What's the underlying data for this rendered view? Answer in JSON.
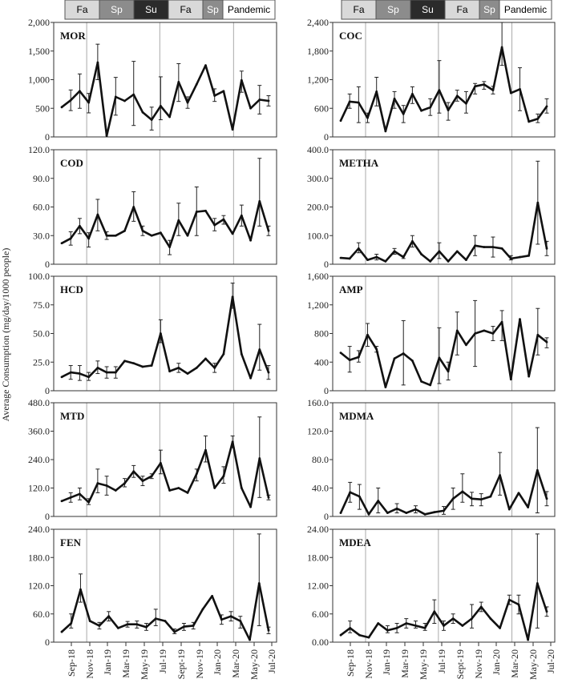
{
  "y_axis_label": "Average Consumption (mg/day/1000 people)",
  "x_tick_labels": [
    "Sep-18",
    "Nov-18",
    "Jan-19",
    "Mar-19",
    "May-19",
    "Jul-19",
    "Sept-19",
    "Nov-19",
    "Jan-20",
    "Mar-20",
    "May-20",
    "Jul-20"
  ],
  "season_bar": {
    "labels": [
      "Fa",
      "Sp",
      "Su",
      "Fa",
      "Sp",
      "Pandemic"
    ],
    "colors": [
      "#d9d9d9",
      "#8c8c8c",
      "#2b2b2b",
      "#d9d9d9",
      "#8c8c8c",
      "#ffffff"
    ],
    "text_colors": [
      "#000000",
      "#ffffff",
      "#ffffff",
      "#000000",
      "#ffffff",
      "#000000"
    ]
  },
  "chart_data": [
    {
      "type": "line",
      "title": "MOR",
      "ylim": [
        0,
        2000
      ],
      "yticks": [
        "0",
        "500",
        "1,000",
        "1,500",
        "2,000"
      ],
      "series": [
        {
          "values": [
            520,
            640,
            800,
            600,
            1300,
            20,
            700,
            630,
            740,
            430,
            300,
            540,
            350,
            960,
            600,
            920,
            1250,
            720,
            800,
            130,
            990,
            500,
            650,
            630
          ],
          "error_lo": [
            null,
            460,
            500,
            420,
            1000,
            null,
            380,
            null,
            200,
            null,
            120,
            300,
            null,
            620,
            500,
            null,
            null,
            620,
            null,
            null,
            780,
            null,
            400,
            540
          ],
          "error_hi": [
            null,
            820,
            1100,
            760,
            1620,
            null,
            1040,
            1150,
            1320,
            null,
            520,
            1050,
            null,
            1280,
            700,
            null,
            null,
            840,
            null,
            null,
            1150,
            null,
            900,
            720
          ]
        }
      ]
    },
    {
      "type": "line",
      "title": "COC",
      "ylim": [
        0,
        2400
      ],
      "yticks": [
        "0",
        "600",
        "1,200",
        "1,800",
        "2,400"
      ],
      "series": [
        {
          "values": [
            340,
            740,
            720,
            400,
            950,
            120,
            800,
            480,
            900,
            550,
            620,
            980,
            560,
            860,
            700,
            1060,
            1100,
            980,
            1880,
            920,
            1000,
            320,
            380,
            640
          ],
          "error_lo": [
            null,
            600,
            300,
            300,
            650,
            null,
            600,
            300,
            700,
            null,
            450,
            500,
            350,
            750,
            500,
            900,
            1000,
            900,
            1500,
            null,
            550,
            null,
            300,
            500
          ],
          "error_hi": [
            null,
            900,
            1050,
            500,
            1250,
            null,
            950,
            660,
            1050,
            null,
            800,
            1600,
            720,
            980,
            950,
            1120,
            1160,
            1060,
            2400,
            null,
            1450,
            null,
            480,
            800
          ]
        }
      ]
    },
    {
      "type": "line",
      "title": "COD",
      "ylim": [
        0,
        120
      ],
      "yticks": [
        "0",
        "30.0",
        "60.0",
        "90.0",
        "120.0"
      ],
      "series": [
        {
          "values": [
            22,
            27,
            40,
            27,
            52,
            30,
            30,
            35,
            60,
            35,
            30,
            33,
            18,
            46,
            30,
            55,
            56,
            41,
            47,
            32,
            51,
            25,
            66,
            35
          ],
          "error_lo": [
            null,
            20,
            32,
            18,
            35,
            26,
            null,
            null,
            45,
            30,
            null,
            null,
            10,
            30,
            null,
            30,
            null,
            35,
            42,
            null,
            40,
            null,
            40,
            30
          ],
          "error_hi": [
            null,
            34,
            48,
            33,
            68,
            34,
            null,
            53,
            76,
            40,
            null,
            51,
            25,
            64,
            null,
            81,
            null,
            48,
            51,
            null,
            62,
            null,
            111,
            40
          ]
        }
      ]
    },
    {
      "type": "line",
      "title": "METHA",
      "ylim": [
        0,
        400
      ],
      "yticks": [
        "0",
        "100.0",
        "200.0",
        "300.0",
        "400.0"
      ],
      "series": [
        {
          "values": [
            22,
            20,
            55,
            15,
            25,
            10,
            45,
            25,
            80,
            35,
            10,
            45,
            10,
            45,
            15,
            65,
            60,
            60,
            55,
            20,
            25,
            30,
            215,
            55
          ],
          "error_lo": [
            null,
            null,
            40,
            null,
            15,
            null,
            35,
            20,
            60,
            null,
            null,
            20,
            null,
            null,
            null,
            30,
            null,
            25,
            null,
            15,
            null,
            null,
            70,
            30
          ],
          "error_hi": [
            null,
            null,
            75,
            null,
            35,
            null,
            55,
            30,
            100,
            null,
            null,
            75,
            null,
            null,
            null,
            100,
            null,
            95,
            null,
            30,
            null,
            null,
            360,
            80
          ]
        }
      ]
    },
    {
      "type": "line",
      "title": "HCD",
      "ylim": [
        0,
        100
      ],
      "yticks": [
        "0",
        "25.0",
        "50.0",
        "75.0",
        "100.0"
      ],
      "series": [
        {
          "values": [
            12,
            16,
            15,
            12,
            20,
            16,
            16,
            26,
            24,
            21,
            22,
            50,
            17,
            20,
            15,
            20,
            28,
            20,
            32,
            82,
            32,
            11,
            36,
            16
          ],
          "error_lo": [
            null,
            10,
            9,
            9,
            15,
            11,
            11,
            null,
            null,
            null,
            null,
            42,
            null,
            16,
            null,
            null,
            null,
            16,
            null,
            72,
            null,
            null,
            18,
            10
          ],
          "error_hi": [
            null,
            22,
            22,
            16,
            26,
            21,
            21,
            null,
            null,
            null,
            null,
            62,
            null,
            24,
            null,
            null,
            null,
            24,
            null,
            94,
            null,
            null,
            58,
            22
          ]
        }
      ]
    },
    {
      "type": "line",
      "title": "AMP",
      "ylim": [
        0,
        1600
      ],
      "yticks": [
        "0",
        "400",
        "800",
        "1,200",
        "1,600"
      ],
      "series": [
        {
          "values": [
            530,
            430,
            470,
            780,
            580,
            50,
            450,
            520,
            420,
            130,
            80,
            460,
            270,
            840,
            640,
            800,
            840,
            800,
            960,
            160,
            1000,
            200,
            780,
            680
          ],
          "error_lo": [
            null,
            260,
            400,
            620,
            540,
            null,
            null,
            80,
            null,
            null,
            null,
            100,
            150,
            500,
            null,
            340,
            null,
            700,
            700,
            null,
            null,
            null,
            500,
            600
          ],
          "error_hi": [
            null,
            620,
            560,
            940,
            620,
            null,
            null,
            980,
            null,
            null,
            null,
            880,
            400,
            1100,
            null,
            1260,
            null,
            900,
            1120,
            null,
            null,
            null,
            1150,
            740
          ]
        }
      ]
    },
    {
      "type": "line",
      "title": "MTD",
      "ylim": [
        0,
        480
      ],
      "yticks": [
        "0",
        "120.0",
        "240.0",
        "360.0",
        "480.0"
      ],
      "series": [
        {
          "values": [
            65,
            80,
            95,
            60,
            140,
            130,
            110,
            140,
            190,
            150,
            170,
            225,
            110,
            120,
            100,
            180,
            280,
            120,
            170,
            315,
            120,
            40,
            245,
            80
          ],
          "error_lo": [
            null,
            60,
            70,
            50,
            100,
            90,
            null,
            125,
            165,
            130,
            160,
            180,
            null,
            null,
            null,
            150,
            230,
            null,
            140,
            290,
            null,
            null,
            80,
            70
          ],
          "error_hi": [
            null,
            100,
            120,
            75,
            200,
            170,
            null,
            160,
            215,
            170,
            180,
            280,
            null,
            null,
            null,
            200,
            340,
            null,
            210,
            340,
            null,
            null,
            420,
            90
          ]
        }
      ]
    },
    {
      "type": "line",
      "title": "MDMA",
      "ylim": [
        0,
        160
      ],
      "yticks": [
        "0",
        "40.0",
        "80.0",
        "120.0",
        "160.0"
      ],
      "series": [
        {
          "values": [
            5,
            34,
            28,
            3,
            22,
            5,
            11,
            5,
            10,
            3,
            6,
            8,
            25,
            35,
            25,
            24,
            28,
            58,
            10,
            33,
            13,
            65,
            25
          ],
          "error_lo": [
            null,
            20,
            10,
            null,
            5,
            null,
            5,
            null,
            5,
            null,
            null,
            3,
            10,
            20,
            15,
            15,
            null,
            30,
            null,
            null,
            null,
            5,
            15
          ],
          "error_hi": [
            null,
            48,
            45,
            null,
            40,
            null,
            18,
            null,
            15,
            null,
            null,
            14,
            40,
            60,
            34,
            32,
            null,
            90,
            null,
            null,
            null,
            125,
            35
          ]
        }
      ]
    },
    {
      "type": "line",
      "title": "FEN",
      "ylim": [
        0,
        240
      ],
      "yticks": [
        "0",
        "60.0",
        "120.0",
        "180.0",
        "240.0"
      ],
      "series": [
        {
          "values": [
            22,
            40,
            112,
            45,
            35,
            55,
            30,
            38,
            38,
            32,
            50,
            45,
            22,
            33,
            35,
            70,
            98,
            48,
            55,
            45,
            5,
            125,
            25
          ],
          "error_lo": [
            null,
            30,
            85,
            null,
            28,
            45,
            null,
            32,
            30,
            25,
            35,
            null,
            18,
            25,
            28,
            null,
            null,
            38,
            45,
            30,
            null,
            35,
            18
          ],
          "error_hi": [
            null,
            60,
            145,
            null,
            42,
            65,
            null,
            44,
            45,
            40,
            70,
            null,
            28,
            40,
            42,
            null,
            null,
            58,
            65,
            55,
            null,
            230,
            32
          ]
        }
      ]
    },
    {
      "type": "line",
      "title": "MDEA",
      "ylim": [
        0,
        24
      ],
      "yticks": [
        "0.00",
        "6.00",
        "12.00",
        "18.00",
        "24.00"
      ],
      "series": [
        {
          "values": [
            1.5,
            3.0,
            1.5,
            1.0,
            4.0,
            2.5,
            3.0,
            4.0,
            3.5,
            3.0,
            6.5,
            3.5,
            5.0,
            3.5,
            5.0,
            7.5,
            5.0,
            3.0,
            9.0,
            8.0,
            0.5,
            12.5,
            6.5
          ],
          "error_lo": [
            null,
            2.0,
            null,
            null,
            null,
            2.0,
            2.0,
            3.0,
            3.0,
            2.5,
            4.0,
            2.5,
            4.0,
            null,
            3.0,
            6.5,
            null,
            null,
            8.0,
            6.0,
            null,
            3.0,
            5.5
          ],
          "error_hi": [
            null,
            4.5,
            null,
            null,
            null,
            3.5,
            4.0,
            5.0,
            4.5,
            4.0,
            9.0,
            4.5,
            6.0,
            null,
            8.0,
            8.5,
            null,
            null,
            10.0,
            10.0,
            null,
            23.0,
            7.5
          ]
        }
      ]
    }
  ]
}
